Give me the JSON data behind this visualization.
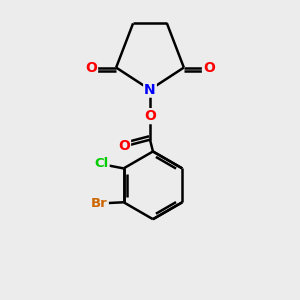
{
  "background_color": "#ececec",
  "atom_colors": {
    "C": "#000000",
    "N": "#0000ff",
    "O": "#ff0000",
    "Cl": "#00cc00",
    "Br": "#cc6600",
    "bond": "#000000"
  },
  "figsize": [
    3.0,
    3.0
  ],
  "dpi": 100
}
